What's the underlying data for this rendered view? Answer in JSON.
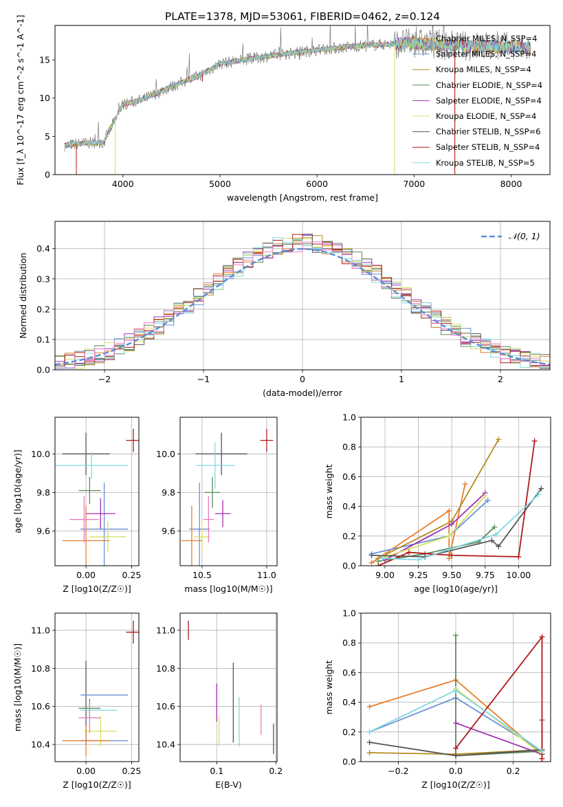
{
  "title": "PLATE=1378, MJD=53061, FIBERID=0462, z=0.124",
  "colors": {
    "Chabrier MILES": "#e87d2b",
    "Salpeter MILES": "#6a8fd6",
    "Kroupa MILES": "#b58a1e",
    "Chabrier ELODIE": "#5a8a5a",
    "Salpeter ELODIE": "#a030b0",
    "Kroupa ELODIE": "#d8e060",
    "Chabrier STELIB": "#555555",
    "Salpeter STELIB": "#b01818",
    "Kroupa STELIB": "#80d8e0",
    "extra1": "#e87bc0"
  },
  "chart_data": [
    {
      "type": "line",
      "title": "PLATE=1378, MJD=53061, FIBERID=0462, z=0.124",
      "xlabel": "wavelength [Angstrom, rest frame]",
      "ylabel": "Flux [f_λ 10^-17 erg cm^-2 s^-1 A^-1]",
      "xlim": [
        3300,
        8400
      ],
      "ylim": [
        0,
        19.5
      ],
      "xticks": [
        "4000",
        "5000",
        "6000",
        "7000",
        "8000"
      ],
      "yticks": [
        "0",
        "5",
        "10",
        "15"
      ],
      "legend_position": "top-right",
      "series": [
        {
          "name": "Chabrier MILES, N_SSP=4"
        },
        {
          "name": "Salpeter MILES, N_SSP=4"
        },
        {
          "name": "Kroupa MILES, N_SSP=4"
        },
        {
          "name": "Chabrier ELODIE, N_SSP=4"
        },
        {
          "name": "Salpeter ELODIE, N_SSP=4"
        },
        {
          "name": "Kroupa ELODIE, N_SSP=4"
        },
        {
          "name": "Chabrier STELIB, N_SSP=6"
        },
        {
          "name": "Salpeter STELIB, N_SSP=4"
        },
        {
          "name": "Kroupa STELIB, N_SSP=5"
        }
      ],
      "continuum": {
        "x": [
          3400,
          3600,
          3800,
          4000,
          4200,
          4500,
          4800,
          5000,
          5500,
          6000,
          6500,
          7000,
          7500,
          8000,
          8200
        ],
        "y": [
          3.8,
          4.1,
          4.2,
          9.2,
          9.8,
          11.5,
          13.0,
          14.5,
          15.5,
          16.3,
          16.9,
          17.2,
          16.8,
          16.7,
          16.5
        ]
      }
    },
    {
      "type": "step",
      "xlabel": "(data-model)/error",
      "ylabel": "Normed distribution",
      "xlim": [
        -2.5,
        2.5
      ],
      "ylim": [
        0,
        0.49
      ],
      "xticks": [
        "−2",
        "−1",
        "0",
        "1",
        "2"
      ],
      "yticks": [
        "0.0",
        "0.1",
        "0.2",
        "0.3",
        "0.4"
      ],
      "legend_position": "top-right",
      "legend_label": "𝒩(0, 1)",
      "bin_width": 0.1
    },
    {
      "type": "errorbar",
      "xlabel": "Z [log10(Z/Z☉)]",
      "ylabel": "age  [log10(age/yr)]",
      "xlim": [
        -0.17,
        0.29
      ],
      "ylim": [
        9.42,
        10.19
      ],
      "xticks": [
        "0.00",
        "0.25"
      ],
      "yticks": [
        "9.6",
        "9.8",
        "10.0"
      ],
      "points": [
        {
          "x": 0.0,
          "xerr": 0.13,
          "y": 10.0,
          "yerr": 0.11
        },
        {
          "x": 0.26,
          "xerr": 0.04,
          "y": 10.07,
          "yerr": 0.06
        },
        {
          "x": 0.03,
          "xerr": 0.2,
          "y": 9.94,
          "yerr": 0.07
        },
        {
          "x": 0.1,
          "xerr": 0.13,
          "y": 9.61,
          "yerr": 0.24
        },
        {
          "x": 0.02,
          "xerr": 0.06,
          "y": 9.81,
          "yerr": 0.07
        },
        {
          "x": 0.08,
          "xerr": 0.08,
          "y": 9.69,
          "yerr": 0.08
        },
        {
          "x": 0.12,
          "xerr": 0.1,
          "y": 9.57,
          "yerr": 0.08
        },
        {
          "x": 0.0,
          "xerr": 0.13,
          "y": 9.55,
          "yerr": 0.18
        },
        {
          "x": -0.01,
          "xerr": 0.08,
          "y": 9.66,
          "yerr": 0.12
        }
      ]
    },
    {
      "type": "errorbar",
      "xlabel": "mass [log10(M/M☉)]",
      "xlim": [
        10.33,
        11.08
      ],
      "ylim": [
        9.42,
        10.19
      ],
      "xticks": [
        "10.5",
        "11.0"
      ],
      "yticks": [
        "9.6",
        "9.8",
        "10.0"
      ],
      "points": [
        {
          "x": 10.65,
          "xerr": 0.2,
          "y": 10.0,
          "yerr": 0.11
        },
        {
          "x": 11.0,
          "xerr": 0.05,
          "y": 10.07,
          "yerr": 0.06
        },
        {
          "x": 10.6,
          "xerr": 0.15,
          "y": 9.94,
          "yerr": 0.12
        },
        {
          "x": 10.48,
          "xerr": 0.08,
          "y": 9.61,
          "yerr": 0.24
        },
        {
          "x": 10.58,
          "xerr": 0.06,
          "y": 9.8,
          "yerr": 0.08
        },
        {
          "x": 10.66,
          "xerr": 0.06,
          "y": 9.69,
          "yerr": 0.07
        },
        {
          "x": 10.5,
          "xerr": 0.06,
          "y": 9.57,
          "yerr": 0.08
        },
        {
          "x": 10.42,
          "xerr": 0.08,
          "y": 9.55,
          "yerr": 0.18
        },
        {
          "x": 10.55,
          "xerr": 0.04,
          "y": 9.66,
          "yerr": 0.12
        }
      ]
    },
    {
      "type": "line",
      "xlabel": "age  [log10(age/yr)]",
      "ylabel": "mass weight",
      "xlim": [
        8.82,
        10.24
      ],
      "ylim": [
        0,
        1.0
      ],
      "xticks": [
        "9.00",
        "9.25",
        "9.50",
        "9.75",
        "10.00"
      ],
      "yticks": [
        "0.0",
        "0.2",
        "0.4",
        "0.6",
        "0.8",
        "1.0"
      ],
      "series": [
        {
          "x": [
            8.9,
            9.48,
            9.48,
            9.6
          ],
          "y": [
            0.02,
            0.37,
            0.05,
            0.55
          ]
        },
        {
          "x": [
            8.9,
            9.48,
            9.77
          ],
          "y": [
            0.08,
            0.2,
            0.44
          ]
        },
        {
          "x": [
            8.95,
            9.5,
            9.85
          ],
          "y": [
            0.05,
            0.3,
            0.85
          ]
        },
        {
          "x": [
            8.95,
            9.3,
            9.7,
            9.82
          ],
          "y": [
            0.03,
            0.08,
            0.16,
            0.26
          ]
        },
        {
          "x": [
            9.0,
            9.5,
            9.75
          ],
          "y": [
            0.04,
            0.28,
            0.49
          ]
        },
        {
          "x": [
            9.0,
            9.48,
            9.75
          ],
          "y": [
            0.06,
            0.2,
            0.47
          ]
        },
        {
          "x": [
            8.9,
            9.3,
            9.8,
            9.85,
            10.17
          ],
          "y": [
            0.07,
            0.06,
            0.17,
            0.13,
            0.52
          ]
        },
        {
          "x": [
            8.95,
            9.18,
            9.5,
            10.0,
            10.12
          ],
          "y": [
            0.0,
            0.09,
            0.07,
            0.06,
            0.84
          ]
        },
        {
          "x": [
            8.98,
            9.25,
            9.48,
            9.83,
            10.15
          ],
          "y": [
            0.05,
            0.04,
            0.11,
            0.21,
            0.48
          ]
        }
      ]
    },
    {
      "type": "errorbar",
      "xlabel": "Z [log10(Z/Z☉)]",
      "ylabel": "mass [log10(M/M☉)]",
      "xlim": [
        -0.17,
        0.29
      ],
      "ylim": [
        10.31,
        11.09
      ],
      "xticks": [
        "0.00",
        "0.25"
      ],
      "yticks": [
        "10.4",
        "10.6",
        "10.8",
        "11.0"
      ],
      "points": [
        {
          "x": 0.0,
          "xerr": 0.0,
          "y": 10.62,
          "yerr": 0.22
        },
        {
          "x": 0.1,
          "xerr": 0.13,
          "y": 10.66,
          "yerr": 0.0
        },
        {
          "x": 0.26,
          "xerr": 0.04,
          "y": 10.99,
          "yerr": 0.06
        },
        {
          "x": 0.02,
          "xerr": 0.06,
          "y": 10.59,
          "yerr": 0.05
        },
        {
          "x": 0.07,
          "xerr": 0.1,
          "y": 10.58,
          "yerr": 0.0
        },
        {
          "x": 0.1,
          "xerr": 0.13,
          "y": 10.42,
          "yerr": 0.0
        },
        {
          "x": 0.08,
          "xerr": 0.09,
          "y": 10.47,
          "yerr": 0.08
        },
        {
          "x": 0.0,
          "xerr": 0.13,
          "y": 10.42,
          "yerr": 0.08
        },
        {
          "x": 0.02,
          "xerr": 0.06,
          "y": 10.54,
          "yerr": 0.08
        }
      ]
    },
    {
      "type": "errorbar",
      "xlabel": "E(B-V)",
      "xlim": [
        0.038,
        0.202
      ],
      "ylim": [
        10.31,
        11.09
      ],
      "xticks": [
        "0.1",
        "0.2"
      ],
      "yticks": [
        "10.4",
        "10.6",
        "10.8",
        "11.0"
      ],
      "points": [
        {
          "x": 0.052,
          "xerr": 0.0,
          "y": 11.0,
          "yerr": 0.05
        },
        {
          "x": 0.128,
          "xerr": 0.0,
          "y": 10.62,
          "yerr": 0.21
        },
        {
          "x": 0.1,
          "xerr": 0.0,
          "y": 10.62,
          "yerr": 0.1
        },
        {
          "x": 0.138,
          "xerr": 0.0,
          "y": 10.52,
          "yerr": 0.13
        },
        {
          "x": 0.104,
          "xerr": 0.0,
          "y": 10.47,
          "yerr": 0.08
        },
        {
          "x": 0.175,
          "xerr": 0.0,
          "y": 10.53,
          "yerr": 0.08
        },
        {
          "x": 0.196,
          "xerr": 0.0,
          "y": 10.43,
          "yerr": 0.08
        }
      ]
    },
    {
      "type": "line",
      "xlabel": "Z [log10(Z/Z☉)]",
      "ylabel": "mass weight",
      "xlim": [
        -0.33,
        0.33
      ],
      "ylim": [
        0,
        1.0
      ],
      "xticks": [
        "−0.2",
        "0.0",
        "0.2"
      ],
      "yticks": [
        "0.0",
        "0.2",
        "0.4",
        "0.6",
        "0.8",
        "1.0"
      ],
      "series": [
        {
          "x": [
            -0.3,
            0.0,
            0.3,
            0.3
          ],
          "y": [
            0.37,
            0.55,
            0.05,
            0.0
          ]
        },
        {
          "x": [
            -0.3,
            0.0,
            0.3
          ],
          "y": [
            0.2,
            0.43,
            0.07
          ]
        },
        {
          "x": [
            -0.3,
            0.0,
            0.3
          ],
          "y": [
            0.06,
            0.05,
            0.08
          ]
        },
        {
          "x": [
            0.0,
            0.0,
            0.0,
            0.3
          ],
          "y": [
            0.85,
            0.04,
            0.04,
            0.07
          ]
        },
        {
          "x": [
            0.0,
            0.3,
            0.3
          ],
          "y": [
            0.26,
            0.05,
            0.28
          ]
        },
        {
          "x": [
            0.0,
            0.3
          ],
          "y": [
            0.49,
            0.05
          ]
        },
        {
          "x": [
            -0.3,
            0.0,
            0.3,
            0.3
          ],
          "y": [
            0.13,
            0.04,
            0.08,
            0.05
          ]
        },
        {
          "x": [
            0.0,
            0.3,
            0.3
          ],
          "y": [
            0.09,
            0.84,
            0.02
          ]
        },
        {
          "x": [
            -0.3,
            0.0,
            0.3
          ],
          "y": [
            0.2,
            0.48,
            0.07
          ]
        }
      ]
    }
  ]
}
